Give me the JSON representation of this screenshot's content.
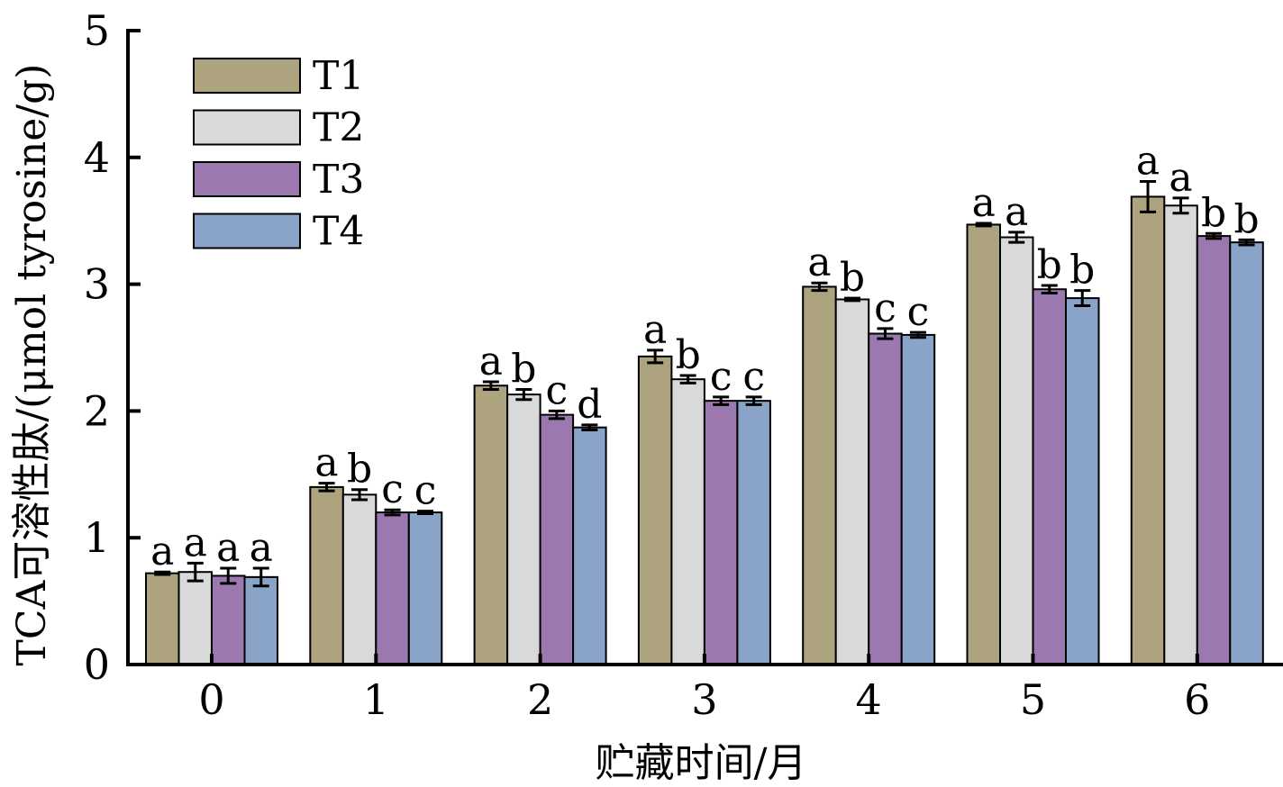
{
  "chart_data": {
    "type": "bar",
    "xlabel": "贮藏时间/月",
    "ylabel": "TCA可溶性肽/(μmol tyrosine/g)",
    "categories": [
      "0",
      "1",
      "2",
      "3",
      "4",
      "5",
      "6"
    ],
    "ylim": [
      0,
      5
    ],
    "yticks": [
      "0",
      "1",
      "2",
      "3",
      "4",
      "5"
    ],
    "grid": false,
    "legend_position": "top-left",
    "series": [
      {
        "name": "T1",
        "color": "#ada37f",
        "values": [
          0.72,
          1.4,
          2.2,
          2.43,
          2.98,
          3.47,
          3.69
        ],
        "errors": [
          0.01,
          0.03,
          0.03,
          0.05,
          0.03,
          0.01,
          0.12
        ],
        "labels": [
          "a",
          "a",
          "a",
          "a",
          "a",
          "a",
          "a"
        ]
      },
      {
        "name": "T2",
        "color": "#d9d9d9",
        "values": [
          0.73,
          1.34,
          2.13,
          2.25,
          2.88,
          3.37,
          3.62
        ],
        "errors": [
          0.07,
          0.04,
          0.04,
          0.03,
          0.01,
          0.04,
          0.06
        ],
        "labels": [
          "a",
          "b",
          "b",
          "b",
          "b",
          "a",
          "a"
        ]
      },
      {
        "name": "T3",
        "color": "#9b79b0",
        "values": [
          0.7,
          1.2,
          1.97,
          2.08,
          2.61,
          2.96,
          3.38
        ],
        "errors": [
          0.06,
          0.02,
          0.03,
          0.03,
          0.04,
          0.03,
          0.02
        ],
        "labels": [
          "a",
          "c",
          "c",
          "c",
          "c",
          "b",
          "b"
        ]
      },
      {
        "name": "T4",
        "color": "#8aa3c8",
        "values": [
          0.69,
          1.2,
          1.87,
          2.08,
          2.6,
          2.89,
          3.33
        ],
        "errors": [
          0.07,
          0.01,
          0.02,
          0.03,
          0.02,
          0.06,
          0.02
        ],
        "labels": [
          "a",
          "c",
          "d",
          "c",
          "c",
          "b",
          "b"
        ]
      }
    ]
  }
}
